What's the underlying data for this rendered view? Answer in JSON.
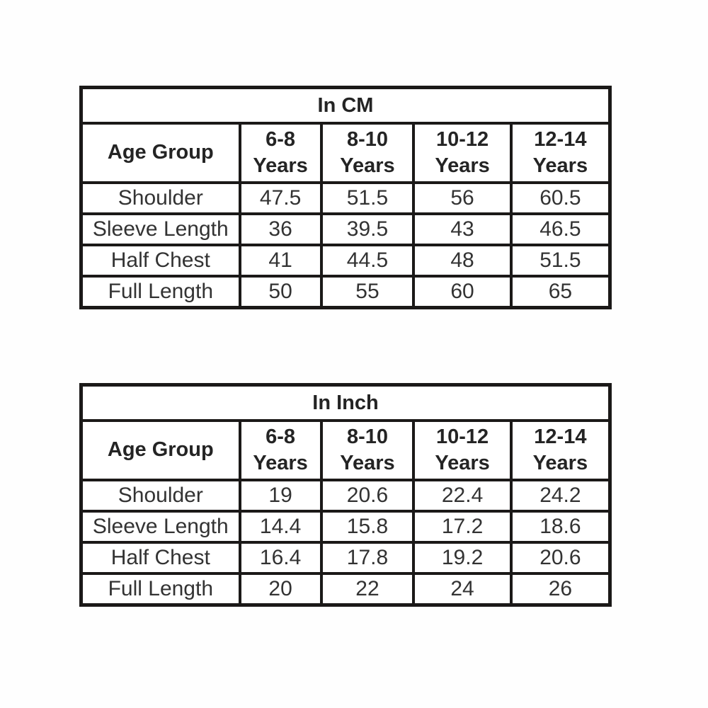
{
  "colors": {
    "background": "#fefefe",
    "table_background": "#ffffff",
    "border": "#1b1918",
    "header_text": "#242424",
    "data_text": "#333333"
  },
  "chart_data": [
    {
      "type": "table",
      "title": "In CM",
      "corner": "Age Group",
      "columns": [
        {
          "range": "6-8",
          "suffix": "Years"
        },
        {
          "range": "8-10",
          "suffix": "Years"
        },
        {
          "range": "10-12",
          "suffix": "Years"
        },
        {
          "range": "12-14",
          "suffix": "Years"
        }
      ],
      "rows": [
        {
          "label": "Shoulder",
          "values": [
            "47.5",
            "51.5",
            "56",
            "60.5"
          ]
        },
        {
          "label": "Sleeve Length",
          "values": [
            "36",
            "39.5",
            "43",
            "46.5"
          ]
        },
        {
          "label": "Half Chest",
          "values": [
            "41",
            "44.5",
            "48",
            "51.5"
          ]
        },
        {
          "label": "Full Length",
          "values": [
            "50",
            "55",
            "60",
            "65"
          ]
        }
      ]
    },
    {
      "type": "table",
      "title": "In Inch",
      "corner": "Age Group",
      "columns": [
        {
          "range": "6-8",
          "suffix": "Years"
        },
        {
          "range": "8-10",
          "suffix": "Years"
        },
        {
          "range": "10-12",
          "suffix": "Years"
        },
        {
          "range": "12-14",
          "suffix": "Years"
        }
      ],
      "rows": [
        {
          "label": "Shoulder",
          "values": [
            "19",
            "20.6",
            "22.4",
            "24.2"
          ]
        },
        {
          "label": "Sleeve Length",
          "values": [
            "14.4",
            "15.8",
            "17.2",
            "18.6"
          ]
        },
        {
          "label": "Half Chest",
          "values": [
            "16.4",
            "17.8",
            "19.2",
            "20.6"
          ]
        },
        {
          "label": "Full Length",
          "values": [
            "20",
            "22",
            "24",
            "26"
          ]
        }
      ]
    }
  ]
}
